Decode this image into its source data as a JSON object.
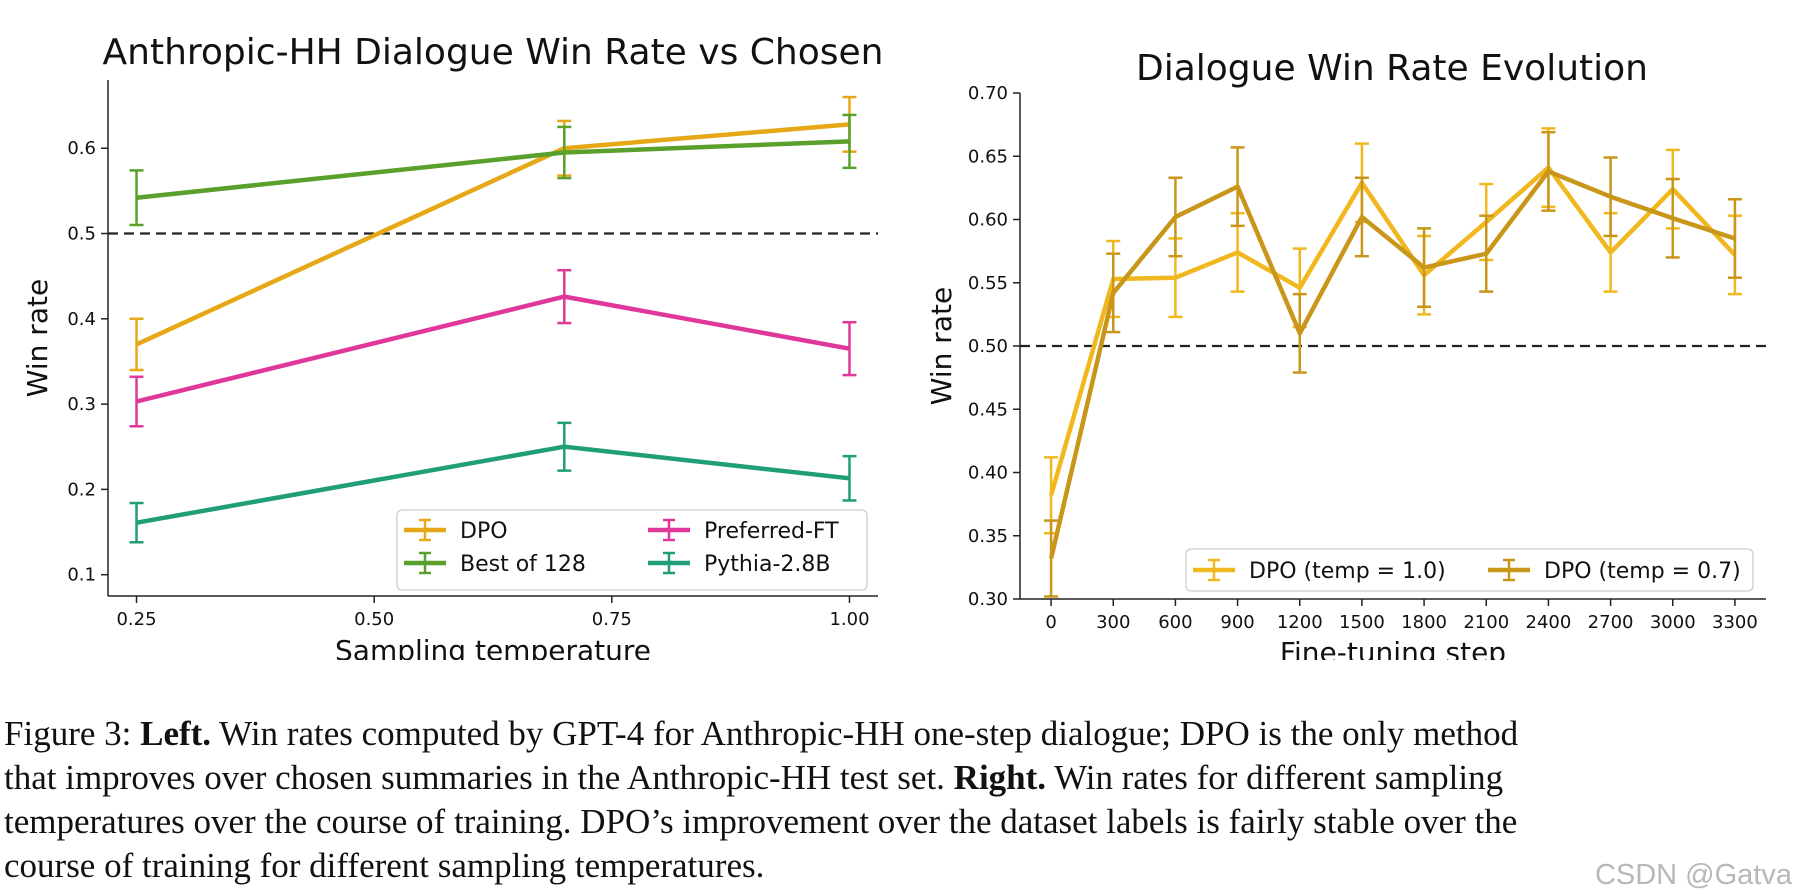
{
  "chart_data": [
    {
      "type": "line",
      "title": "Anthropic-HH Dialogue Win Rate vs Chosen",
      "xlabel": "Sampling temperature",
      "ylabel": "Win rate",
      "xlim": [
        0.22,
        1.03
      ],
      "ylim": [
        0.075,
        0.68
      ],
      "xticks": [
        0.25,
        0.5,
        0.75,
        1.0
      ],
      "xtick_labels": [
        "0.25",
        "0.50",
        "0.75",
        "1.00"
      ],
      "yticks": [
        0.1,
        0.2,
        0.3,
        0.4,
        0.5,
        0.6
      ],
      "ytick_labels": [
        "0.1",
        "0.2",
        "0.3",
        "0.4",
        "0.5",
        "0.6"
      ],
      "reference_line": 0.5,
      "legend_position": "lower-right",
      "x": [
        0.25,
        0.7,
        1.0
      ],
      "series": [
        {
          "name": "DPO",
          "color": "#e6a817",
          "values": [
            0.37,
            0.6,
            0.628
          ],
          "errors": [
            0.03,
            0.032,
            0.032
          ]
        },
        {
          "name": "Best of 128",
          "color": "#5aa02c",
          "values": [
            0.542,
            0.595,
            0.608
          ],
          "errors": [
            0.032,
            0.03,
            0.031
          ]
        },
        {
          "name": "Preferred-FT",
          "color": "#e0389a",
          "values": [
            0.303,
            0.426,
            0.365
          ],
          "errors": [
            0.029,
            0.031,
            0.031
          ]
        },
        {
          "name": "Pythia-2.8B",
          "color": "#1f9e78",
          "values": [
            0.161,
            0.25,
            0.213
          ],
          "errors": [
            0.023,
            0.028,
            0.026
          ]
        }
      ]
    },
    {
      "type": "line",
      "title": "Dialogue Win Rate Evolution",
      "xlabel": "Fine-tuning step",
      "ylabel": "Win rate",
      "xlim": [
        -150,
        3450
      ],
      "ylim": [
        0.3,
        0.7
      ],
      "xticks": [
        0,
        300,
        600,
        900,
        1200,
        1500,
        1800,
        2100,
        2400,
        2700,
        3000,
        3300
      ],
      "xtick_labels": [
        "0",
        "300",
        "600",
        "900",
        "1200",
        "1500",
        "1800",
        "2100",
        "2400",
        "2700",
        "3000",
        "3300"
      ],
      "yticks": [
        0.3,
        0.35,
        0.4,
        0.45,
        0.5,
        0.55,
        0.6,
        0.65,
        0.7
      ],
      "ytick_labels": [
        "0.30",
        "0.35",
        "0.40",
        "0.45",
        "0.50",
        "0.55",
        "0.60",
        "0.65",
        "0.70"
      ],
      "reference_line": 0.5,
      "legend_position": "bottom-right",
      "x": [
        0,
        300,
        600,
        900,
        1200,
        1500,
        1800,
        2100,
        2400,
        2700,
        3000,
        3300
      ],
      "series": [
        {
          "name": "DPO (temp = 1.0)",
          "color": "#f0b81e",
          "values": [
            0.382,
            0.553,
            0.554,
            0.574,
            0.546,
            0.629,
            0.556,
            0.598,
            0.641,
            0.574,
            0.624,
            0.572
          ],
          "errors": [
            0.03,
            0.03,
            0.031,
            0.031,
            0.031,
            0.031,
            0.031,
            0.03,
            0.031,
            0.031,
            0.031,
            0.031
          ]
        },
        {
          "name": "DPO (temp = 0.7)",
          "color": "#c9961a",
          "values": [
            0.332,
            0.542,
            0.602,
            0.626,
            0.51,
            0.602,
            0.562,
            0.573,
            0.638,
            0.618,
            0.601,
            0.585
          ],
          "errors": [
            0.03,
            0.031,
            0.031,
            0.031,
            0.031,
            0.031,
            0.031,
            0.03,
            0.031,
            0.031,
            0.031,
            0.031
          ]
        }
      ]
    }
  ],
  "caption": {
    "line1_a": "Figure 3: ",
    "line1_b": "Left.",
    "line1_c": " Win rates computed by GPT-4 for Anthropic-HH one-step dialogue; DPO is the only method",
    "line2_a": "that improves over chosen summaries in the Anthropic-HH test set. ",
    "line2_b": "Right.",
    "line2_c": " Win rates for different sampling",
    "line3": "temperatures over the course of training. DPO’s improvement over the dataset labels is fairly stable over the",
    "line4": "course of training for different sampling temperatures."
  },
  "watermark": "CSDN @Gatva"
}
